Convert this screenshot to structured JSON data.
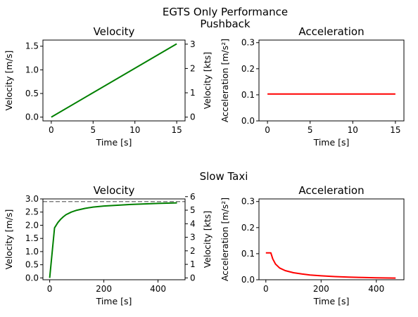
{
  "figure": {
    "title": "EGTS Only Performance",
    "section_titles": [
      "Pushback",
      "Slow Taxi"
    ]
  },
  "chart_data": [
    {
      "type": "line",
      "title": "Velocity",
      "xlabel": "Time [s]",
      "ylabel": "Velocity [m/s]",
      "ylabel_right": "Velocity [kts]",
      "xlim": [
        -1,
        16
      ],
      "ylim": [
        -0.08,
        1.63
      ],
      "xticks": [
        0,
        5,
        10,
        15
      ],
      "yticks": [
        0.0,
        0.5,
        1.0,
        1.5
      ],
      "ytick_labels": [
        "0.0",
        "0.5",
        "1.0",
        "1.5"
      ],
      "yticks_right": [
        0,
        1,
        2,
        3
      ],
      "kts_per_ms": 1.94384,
      "series": [
        {
          "color": "#008000",
          "x": [
            0,
            15
          ],
          "y": [
            0.0,
            1.55
          ]
        }
      ]
    },
    {
      "type": "line",
      "title": "Acceleration",
      "xlabel": "Time [s]",
      "ylabel": "Acceleration [m/s²]",
      "xlim": [
        -1,
        16
      ],
      "ylim": [
        0,
        0.31
      ],
      "xticks": [
        0,
        5,
        10,
        15
      ],
      "yticks": [
        0.0,
        0.1,
        0.2,
        0.3
      ],
      "ytick_labels": [
        "0.0",
        "0.1",
        "0.2",
        "0.3"
      ],
      "series": [
        {
          "color": "#ff0000",
          "x": [
            0,
            15
          ],
          "y": [
            0.103,
            0.103
          ]
        }
      ]
    },
    {
      "type": "line",
      "title": "Velocity",
      "xlabel": "Time [s]",
      "ylabel": "Velocity [m/s]",
      "ylabel_right": "Velocity [kts]",
      "xlim": [
        -25,
        500
      ],
      "ylim": [
        -0.07,
        3.0
      ],
      "xticks": [
        0,
        200,
        400
      ],
      "yticks": [
        0.0,
        0.5,
        1.0,
        1.5,
        2.0,
        2.5,
        3.0
      ],
      "ytick_labels": [
        "0.0",
        "0.5",
        "1.0",
        "1.5",
        "2.0",
        "2.5",
        "3.0"
      ],
      "yticks_right": [
        0,
        1,
        2,
        3,
        4,
        5,
        6
      ],
      "kts_per_ms": 1.94384,
      "reference_line": {
        "y": 2.9,
        "color": "#808080",
        "style": "dashed"
      },
      "series": [
        {
          "color": "#008000",
          "x": [
            0,
            18,
            30,
            40,
            50,
            60,
            80,
            100,
            130,
            160,
            200,
            250,
            300,
            350,
            400,
            470
          ],
          "y": [
            0.0,
            1.9,
            2.1,
            2.22,
            2.32,
            2.4,
            2.5,
            2.57,
            2.64,
            2.69,
            2.73,
            2.76,
            2.79,
            2.81,
            2.83,
            2.85
          ]
        }
      ]
    },
    {
      "type": "line",
      "title": "Acceleration",
      "xlabel": "Time [s]",
      "ylabel": "Acceleration [m/s²]",
      "xlim": [
        -25,
        500
      ],
      "ylim": [
        0,
        0.31
      ],
      "xticks": [
        0,
        200,
        400
      ],
      "yticks": [
        0.0,
        0.1,
        0.2,
        0.3
      ],
      "ytick_labels": [
        "0.0",
        "0.1",
        "0.2",
        "0.3"
      ],
      "series": [
        {
          "color": "#ff0000",
          "x": [
            0,
            18,
            25,
            35,
            50,
            70,
            100,
            130,
            160,
            200,
            250,
            300,
            350,
            400,
            470
          ],
          "y": [
            0.103,
            0.103,
            0.08,
            0.06,
            0.045,
            0.035,
            0.027,
            0.022,
            0.018,
            0.015,
            0.012,
            0.01,
            0.0085,
            0.0075,
            0.0065
          ]
        }
      ]
    }
  ]
}
